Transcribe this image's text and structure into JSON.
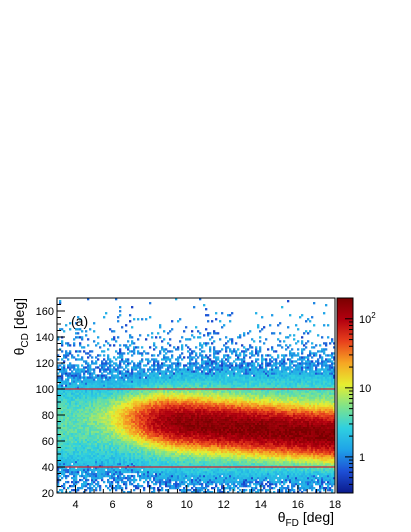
{
  "chart_data": {
    "type": "heatmap",
    "panel_label": "(a)",
    "xlabel": {
      "symbol": "θ",
      "sub": "FD",
      "unit": "[deg]"
    },
    "ylabel": {
      "symbol": "θ",
      "sub": "CD",
      "unit": "[deg]"
    },
    "xlim": [
      3,
      18
    ],
    "ylim": [
      20,
      170
    ],
    "x_ticks": [
      4,
      6,
      8,
      10,
      12,
      14,
      16,
      18
    ],
    "y_ticks": [
      20,
      40,
      60,
      80,
      100,
      120,
      140,
      160
    ],
    "z_scale": "log",
    "z_range": [
      0.3,
      200
    ],
    "z_ticks": [
      {
        "value": 1,
        "base": "1",
        "exp": ""
      },
      {
        "value": 10,
        "base": "10",
        "exp": ""
      },
      {
        "value": 100,
        "base": "10",
        "exp": "2"
      }
    ],
    "colormap": [
      "#0b1a8c",
      "#1d4fd6",
      "#1fa3e8",
      "#2fd0e0",
      "#7fe38a",
      "#e6ee30",
      "#f6a623",
      "#e8401c",
      "#b3000f",
      "#7a0000"
    ],
    "cut_lines": [
      {
        "y": 40,
        "color": "#d8202a"
      },
      {
        "y": 100,
        "color": "#d8202a"
      }
    ],
    "density_peak": {
      "x_from": 8.5,
      "x_to": 18,
      "y_center_at_x8": 76,
      "y_center_at_x18": 65
    }
  }
}
